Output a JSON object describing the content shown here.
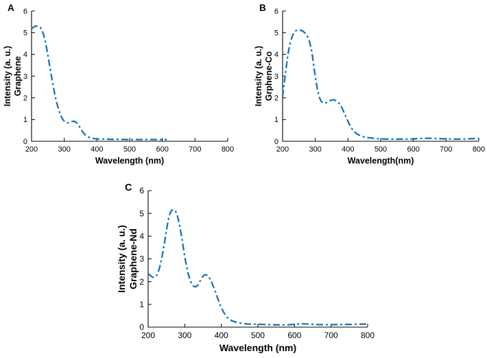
{
  "figure": {
    "background": "#ffffff",
    "panel_labels": [
      "A",
      "B",
      "C"
    ]
  },
  "accent_color": "#1375b8",
  "chart_data": [
    {
      "id": "A",
      "panel_label": "A",
      "type": "line",
      "line_style": "dash-dot",
      "color": "#1375b8",
      "xlabel": "Wavelength (nm)",
      "ylabel_line1": "Intensity (a. u.)",
      "ylabel_line2": "Graphene",
      "xlim": [
        200,
        800
      ],
      "ylim": [
        0,
        6
      ],
      "xticks": [
        200,
        300,
        400,
        500,
        600,
        700,
        800
      ],
      "yticks": [
        0,
        1,
        2,
        3,
        4,
        5,
        6
      ],
      "grid": false,
      "legend": "none",
      "x": [
        200,
        206,
        212,
        218,
        224,
        230,
        238,
        246,
        254,
        262,
        270,
        278,
        286,
        294,
        302,
        310,
        318,
        326,
        334,
        342,
        350,
        358,
        366,
        376,
        388,
        400,
        415,
        430,
        450,
        470,
        490,
        510,
        530,
        550,
        570,
        590,
        605,
        614
      ],
      "y": [
        5.18,
        5.26,
        5.3,
        5.3,
        5.27,
        5.18,
        4.85,
        4.3,
        3.6,
        2.9,
        2.25,
        1.72,
        1.33,
        1.05,
        0.9,
        0.85,
        0.87,
        0.92,
        0.9,
        0.78,
        0.58,
        0.4,
        0.27,
        0.18,
        0.13,
        0.11,
        0.1,
        0.1,
        0.09,
        0.09,
        0.08,
        0.08,
        0.08,
        0.08,
        0.08,
        0.08,
        0.08,
        0.08
      ]
    },
    {
      "id": "B",
      "panel_label": "B",
      "type": "line",
      "line_style": "dash-dot",
      "color": "#1375b8",
      "xlabel": "Wavelength(nm)",
      "ylabel_line1": "Intensity (a. u.)",
      "ylabel_line2": "Grphene-Co",
      "xlim": [
        200,
        800
      ],
      "ylim": [
        0,
        6
      ],
      "xticks": [
        200,
        300,
        400,
        500,
        600,
        700,
        800
      ],
      "yticks": [
        0,
        1,
        2,
        3,
        4,
        5,
        6
      ],
      "grid": false,
      "legend": "none",
      "x": [
        200,
        204,
        209,
        214,
        220,
        227,
        234,
        242,
        250,
        258,
        266,
        274,
        282,
        290,
        297,
        304,
        311,
        318,
        326,
        334,
        342,
        350,
        358,
        366,
        374,
        382,
        392,
        402,
        412,
        424,
        436,
        450,
        465,
        482,
        500,
        520,
        540,
        560,
        580,
        600,
        620,
        640,
        660,
        680,
        700,
        720,
        740,
        760,
        780,
        800
      ],
      "y": [
        2.05,
        2.55,
        3.15,
        3.75,
        4.3,
        4.72,
        4.98,
        5.1,
        5.12,
        5.1,
        5.02,
        4.88,
        4.6,
        4.05,
        3.3,
        2.6,
        2.1,
        1.85,
        1.76,
        1.78,
        1.85,
        1.9,
        1.9,
        1.84,
        1.72,
        1.52,
        1.18,
        0.85,
        0.58,
        0.38,
        0.27,
        0.2,
        0.16,
        0.13,
        0.11,
        0.1,
        0.1,
        0.1,
        0.1,
        0.11,
        0.13,
        0.14,
        0.13,
        0.12,
        0.11,
        0.1,
        0.1,
        0.11,
        0.12,
        0.13
      ]
    },
    {
      "id": "C",
      "panel_label": "C",
      "type": "line",
      "line_style": "dash-dot",
      "color": "#1375b8",
      "xlabel": "Wavelength (nm)",
      "ylabel_line1": "Intensity (a. u.)",
      "ylabel_line2": "Graphene-Nd",
      "xlim": [
        200,
        800
      ],
      "ylim": [
        0,
        6
      ],
      "xticks": [
        200,
        300,
        400,
        500,
        600,
        700,
        800
      ],
      "yticks": [
        0,
        1,
        2,
        3,
        4,
        5,
        6
      ],
      "grid": false,
      "legend": "none",
      "x": [
        200,
        206,
        212,
        218,
        224,
        230,
        236,
        243,
        250,
        257,
        264,
        271,
        278,
        285,
        292,
        299,
        306,
        313,
        320,
        327,
        334,
        341,
        348,
        355,
        362,
        370,
        378,
        386,
        395,
        405,
        415,
        427,
        440,
        455,
        472,
        490,
        510,
        530,
        552,
        575,
        598,
        615,
        632,
        655,
        680,
        705,
        730,
        755,
        780,
        800
      ],
      "y": [
        2.35,
        2.27,
        2.2,
        2.2,
        2.3,
        2.55,
        2.95,
        3.55,
        4.25,
        4.85,
        5.12,
        5.15,
        4.98,
        4.55,
        3.92,
        3.2,
        2.6,
        2.15,
        1.88,
        1.78,
        1.82,
        2.0,
        2.2,
        2.3,
        2.27,
        2.1,
        1.8,
        1.45,
        1.05,
        0.7,
        0.45,
        0.3,
        0.22,
        0.17,
        0.14,
        0.13,
        0.12,
        0.11,
        0.1,
        0.1,
        0.12,
        0.14,
        0.14,
        0.12,
        0.11,
        0.11,
        0.12,
        0.12,
        0.13,
        0.13
      ]
    }
  ]
}
